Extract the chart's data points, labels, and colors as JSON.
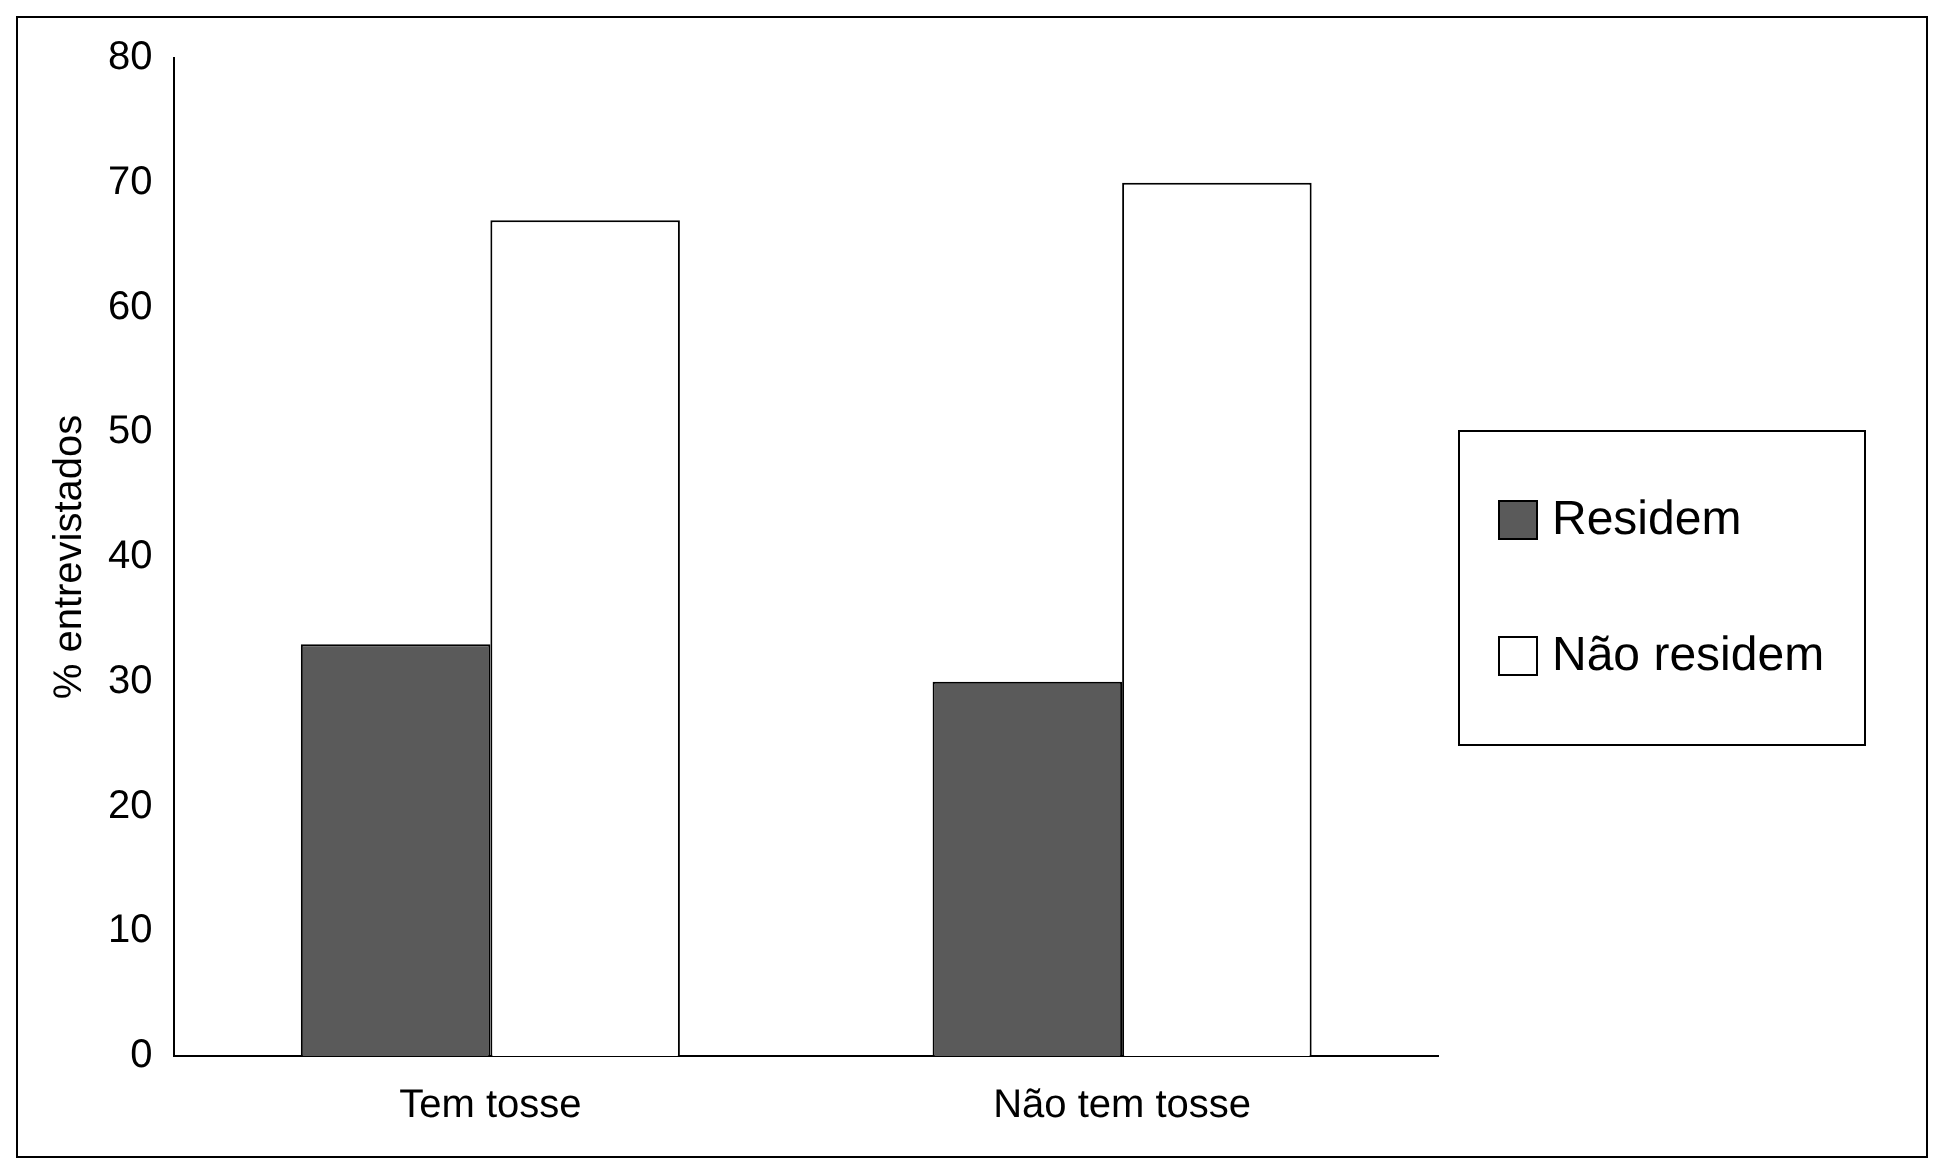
{
  "chart_data": {
    "type": "bar",
    "ylabel": "% entrevistados",
    "categories": [
      "Tem tosse",
      "Não tem tosse"
    ],
    "series": [
      {
        "name": "Residem",
        "color": "#5a5a5a",
        "values": [
          33,
          30
        ]
      },
      {
        "name": "Não residem",
        "color": "#ffffff",
        "values": [
          67,
          70
        ]
      }
    ],
    "ylim": [
      0,
      80
    ],
    "yticks": [
      0,
      10,
      20,
      30,
      40,
      50,
      60,
      70,
      80
    ],
    "grid": false,
    "legend": "right"
  }
}
